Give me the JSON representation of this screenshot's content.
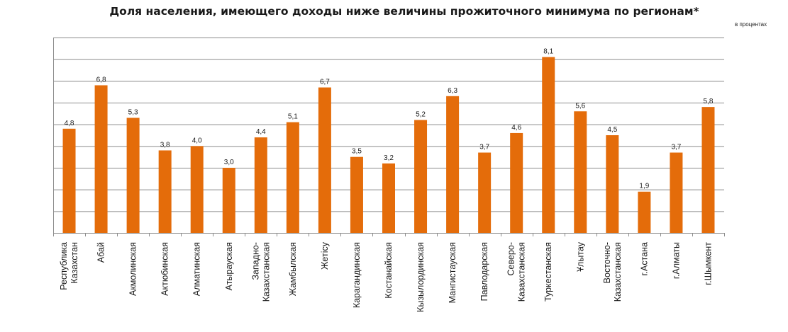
{
  "chart_data": {
    "type": "bar",
    "title": "Доля населения, имеющего доходы ниже величины прожиточного минимума по регионам*",
    "unit_label": "в процентах",
    "xlabel": "",
    "ylabel": "",
    "ylim": [
      0,
      9
    ],
    "grid": true,
    "legend": "none",
    "categories": [
      "Республика Казахстан",
      "Абай",
      "Акмолинская",
      "Актюбинская",
      "Алматинская",
      "Атырауская",
      "Западно-Казахстанская",
      "Жамбылская",
      "Жетісу",
      "Карагандинская",
      "Костанайская",
      "Кызылординская",
      "Мангистауская",
      "Павлодарская",
      "Северо-Казахстанская",
      "Туркестанская",
      "Ұлытау",
      "Восточно-Казахстанская",
      "г.Астана",
      "г.Алматы",
      "г.Шымкент"
    ],
    "category_lines": [
      [
        "Республика",
        "Казахстан"
      ],
      [
        "Абай"
      ],
      [
        "Акмолинская"
      ],
      [
        "Актюбинская"
      ],
      [
        "Алматинская"
      ],
      [
        "Атырауская"
      ],
      [
        "Западно-",
        "Казахстанская"
      ],
      [
        "Жамбылская"
      ],
      [
        "Жетісу"
      ],
      [
        "Карагандинская"
      ],
      [
        "Костанайская"
      ],
      [
        "Кызылординская"
      ],
      [
        "Мангистауская"
      ],
      [
        "Павлодарская"
      ],
      [
        "Северо-",
        "Казахстанская"
      ],
      [
        "Туркестанская"
      ],
      [
        "Ұлытау"
      ],
      [
        "Восточно-",
        "Казахстанская"
      ],
      [
        "г.Астана"
      ],
      [
        "г.Алматы"
      ],
      [
        "г.Шымкент"
      ]
    ],
    "values": [
      4.8,
      6.8,
      5.3,
      3.8,
      4.0,
      3.0,
      4.4,
      5.1,
      6.7,
      3.5,
      3.2,
      5.2,
      6.3,
      3.7,
      4.6,
      8.1,
      5.6,
      4.5,
      1.9,
      3.7,
      5.8
    ],
    "data_labels": [
      "4,8",
      "6,8",
      "5,3",
      "3,8",
      "4,0",
      "3,0",
      "4,4",
      "5,1",
      "6,7",
      "3,5",
      "3,2",
      "5,2",
      "6,3",
      "3,7",
      "4,6",
      "8,1",
      "5,6",
      "4,5",
      "1,9",
      "3,7",
      "5,8"
    ],
    "bar_color": "#E46C0A",
    "grid_color": "#8C8C8C"
  }
}
